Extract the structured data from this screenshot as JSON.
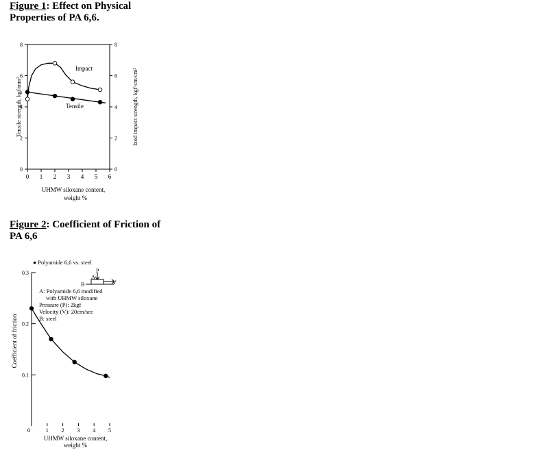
{
  "figures": [
    {
      "label": "Figure 1",
      "title": ": Effect on Physical Properties of PA 6,6."
    },
    {
      "label": "Figure 2",
      "title": ": Coefficient of Friction of PA 6,6"
    }
  ],
  "chart_data": [
    {
      "type": "line",
      "ylabel": "Tensile strength, kgf/mm²",
      "y2label": "Izod impact strength, kgf·cm/cm²",
      "xlabel_line1": "UHMW siloxane content,",
      "xlabel_line2": "weight %",
      "xlim": [
        0,
        6
      ],
      "ylim": [
        0,
        8
      ],
      "y2lim": [
        0,
        8
      ],
      "xticks": [
        "0",
        "1",
        "2",
        "3",
        "4",
        "5",
        "6"
      ],
      "yticks": [
        "0",
        "2",
        "4",
        "6",
        "8"
      ],
      "y2ticks": [
        "0",
        "2",
        "4",
        "6",
        "8"
      ],
      "series": [
        {
          "name": "Impact",
          "axis": "right",
          "marker": "open-circle",
          "points": [
            [
              0,
              4.5
            ],
            [
              2,
              6.8
            ],
            [
              3.3,
              5.6
            ],
            [
              5.3,
              5.1
            ]
          ],
          "curve": [
            [
              0,
              4.5
            ],
            [
              0.1,
              5.3
            ],
            [
              0.3,
              6.0
            ],
            [
              0.6,
              6.45
            ],
            [
              1.0,
              6.7
            ],
            [
              1.5,
              6.8
            ],
            [
              2.0,
              6.8
            ],
            [
              2.4,
              6.55
            ],
            [
              2.8,
              6.05
            ],
            [
              3.3,
              5.6
            ],
            [
              4.0,
              5.35
            ],
            [
              4.6,
              5.2
            ],
            [
              5.3,
              5.1
            ]
          ]
        },
        {
          "name": "Tensile",
          "axis": "left",
          "marker": "filled-circle",
          "points": [
            [
              0,
              4.95
            ],
            [
              2,
              4.7
            ],
            [
              3.3,
              4.5
            ],
            [
              5.3,
              4.3
            ]
          ],
          "curve": [
            [
              0,
              4.95
            ],
            [
              5.7,
              4.25
            ]
          ]
        }
      ]
    },
    {
      "type": "line",
      "legend": "● Polyamide 6,6 vs. steel",
      "ylabel": "Coefficient of friction",
      "xlabel_line1": "UHMW siloxane content,",
      "xlabel_line2": "weight %",
      "xlim": [
        0,
        5
      ],
      "ylim": [
        0,
        0.3
      ],
      "xticks": [
        "0",
        "1",
        "2",
        "3",
        "4",
        "5"
      ],
      "yticks": [
        "0.1",
        "0.2",
        "0.3"
      ],
      "series": [
        {
          "marker": "filled-circle",
          "points": [
            [
              0,
              0.23
            ],
            [
              1.25,
              0.17
            ],
            [
              2.75,
              0.125
            ],
            [
              4.75,
              0.098
            ]
          ],
          "curve": [
            [
              0,
              0.23
            ],
            [
              0.5,
              0.205
            ],
            [
              1.25,
              0.17
            ],
            [
              2.0,
              0.145
            ],
            [
              2.75,
              0.125
            ],
            [
              3.5,
              0.111
            ],
            [
              4.2,
              0.102
            ],
            [
              4.75,
              0.098
            ],
            [
              5.0,
              0.095
            ]
          ]
        }
      ],
      "annotation": {
        "force_label": "P",
        "a_label": "A",
        "b_label": "B",
        "v_label": "V",
        "lines": [
          "A: Polyamide 6,6 modified",
          "with UHMW siloxane",
          "Pressure (P): 2kgf",
          "Velocity (V): 20cm/sec",
          "B: steel"
        ]
      }
    }
  ]
}
